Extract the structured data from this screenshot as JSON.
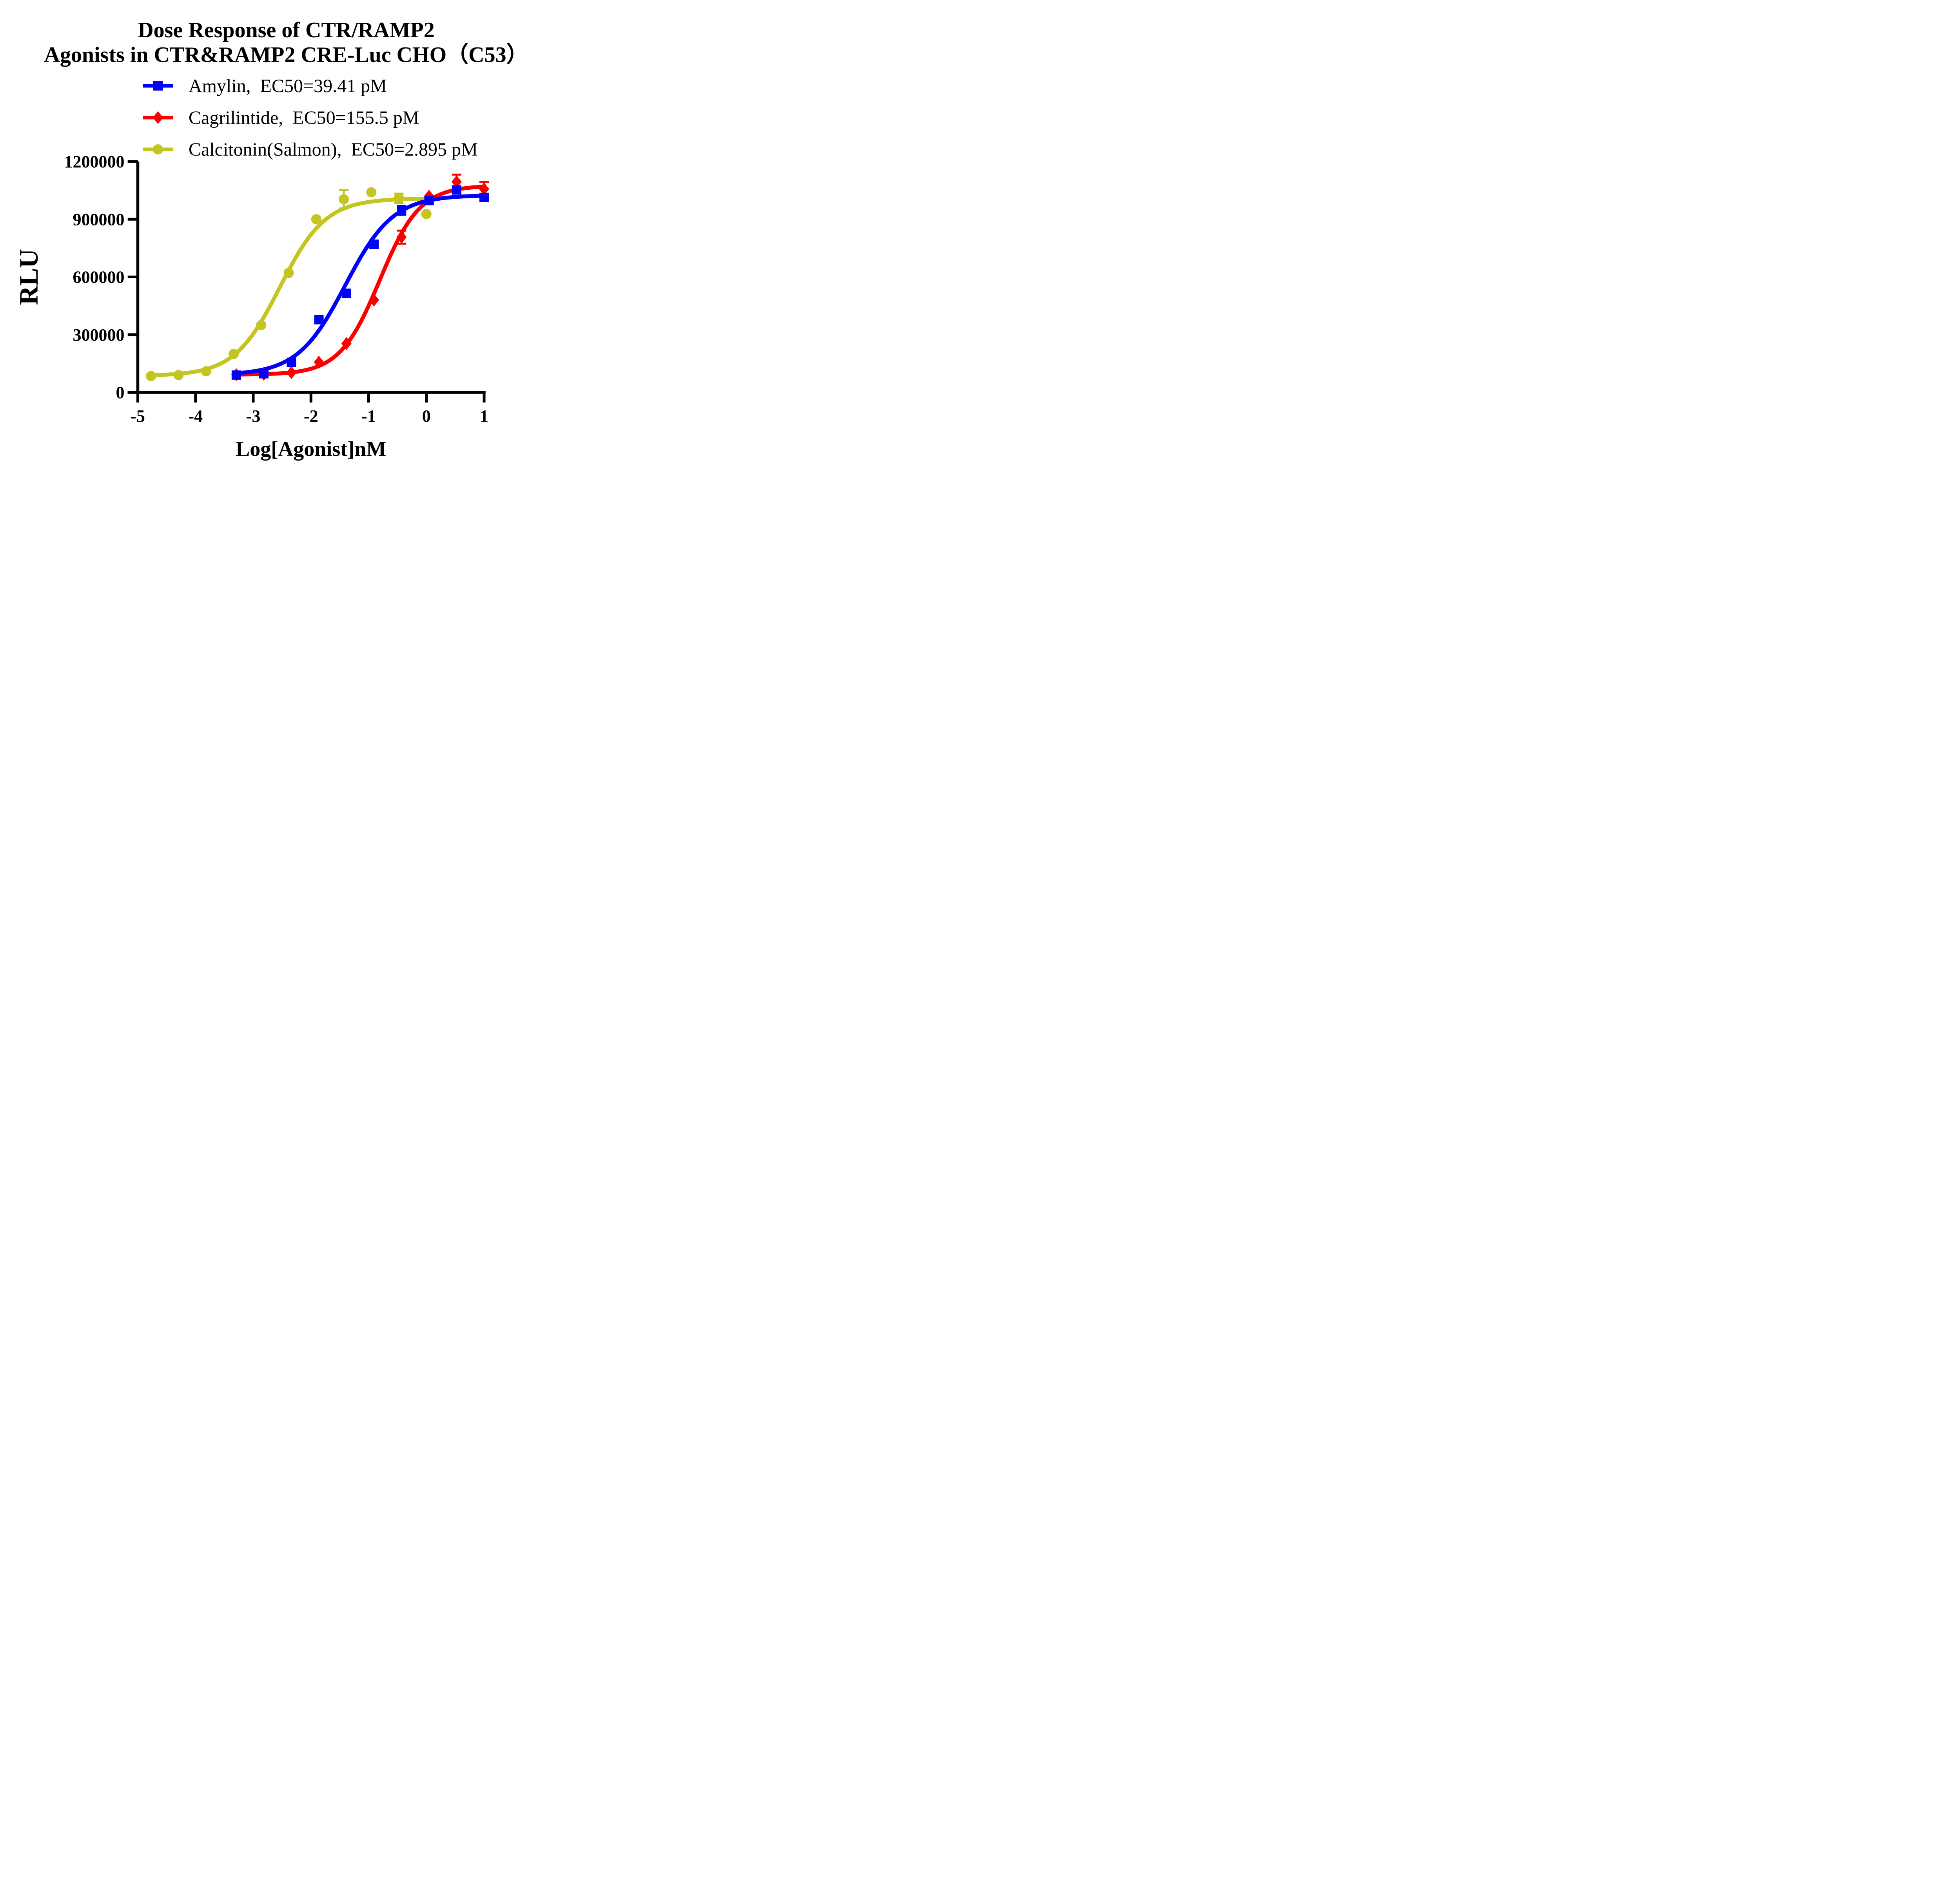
{
  "title": {
    "line1": "Dose Response of CTR/RAMP2",
    "line2": "Agonists in CTR&RAMP2 CRE-Luc CHO（C53）"
  },
  "chart_data": {
    "type": "line",
    "title": "Dose Response of CTR/RAMP2 Agonists in CTR&RAMP2 CRE-Luc CHO（C53）",
    "xlabel": "Log[Agonist]nM",
    "ylabel": "RLU",
    "xlim": [
      -5,
      1
    ],
    "ylim": [
      0,
      1200000
    ],
    "x_ticks": [
      -5,
      -4,
      -3,
      -2,
      -1,
      0,
      1
    ],
    "y_ticks": [
      0,
      300000,
      600000,
      900000,
      1200000
    ],
    "grid": false,
    "legend_position": "top-left-under-title",
    "series": [
      {
        "name": "Amylin",
        "label": "Amylin,  EC50=39.41 pM",
        "ec50": "39.41 pM",
        "color": "#0000FE",
        "marker": "square",
        "fit": {
          "bottom": 90000,
          "top": 1025000,
          "logEC50": -1.404,
          "hill": 1.05
        },
        "points": [
          [
            -3.293,
            90000,
            0
          ],
          [
            -2.816,
            97000,
            0
          ],
          [
            -2.339,
            156000,
            0
          ],
          [
            -1.862,
            378000,
            0
          ],
          [
            -1.385,
            515000,
            0
          ],
          [
            -0.908,
            770000,
            0
          ],
          [
            -0.431,
            946000,
            23000
          ],
          [
            0.046,
            997000,
            0
          ],
          [
            0.523,
            1052000,
            0
          ],
          [
            1.0,
            1013000,
            0
          ]
        ]
      },
      {
        "name": "Cagrilintide",
        "label": "Cagrilintide,  EC50=155.5 pM",
        "ec50": "155.5 pM",
        "color": "#FB0000",
        "marker": "diamond",
        "fit": {
          "bottom": 92000,
          "top": 1075000,
          "logEC50": -0.808,
          "hill": 1.25
        },
        "points": [
          [
            -3.293,
            92000,
            0
          ],
          [
            -2.816,
            94000,
            0
          ],
          [
            -2.339,
            103000,
            0
          ],
          [
            -1.862,
            157000,
            0
          ],
          [
            -1.385,
            254000,
            0
          ],
          [
            -0.908,
            480000,
            0
          ],
          [
            -0.431,
            807000,
            34000
          ],
          [
            0.046,
            1020000,
            0
          ],
          [
            0.523,
            1094000,
            38000
          ],
          [
            1.0,
            1057000,
            38000
          ]
        ]
      },
      {
        "name": "Calcitonin(Salmon)",
        "label": "Calcitonin(Salmon),  EC50=2.895 pM",
        "ec50": "2.895 pM",
        "color": "#C4C521",
        "marker": "circle",
        "fit": {
          "bottom": 86000,
          "top": 1008000,
          "logEC50": -2.538,
          "hill": 1.1
        },
        "points": [
          [
            -4.771,
            85000,
            0
          ],
          [
            -4.294,
            90000,
            0
          ],
          [
            -3.816,
            110000,
            0
          ],
          [
            -3.339,
            200000,
            0
          ],
          [
            -2.862,
            350000,
            0
          ],
          [
            -2.385,
            621000,
            0
          ],
          [
            -1.908,
            900000,
            0
          ],
          [
            -1.431,
            1004000,
            48000
          ],
          [
            -0.954,
            1040000,
            0
          ],
          [
            -0.477,
            1009000,
            24000
          ],
          [
            0.0,
            927000,
            0
          ]
        ]
      }
    ]
  }
}
